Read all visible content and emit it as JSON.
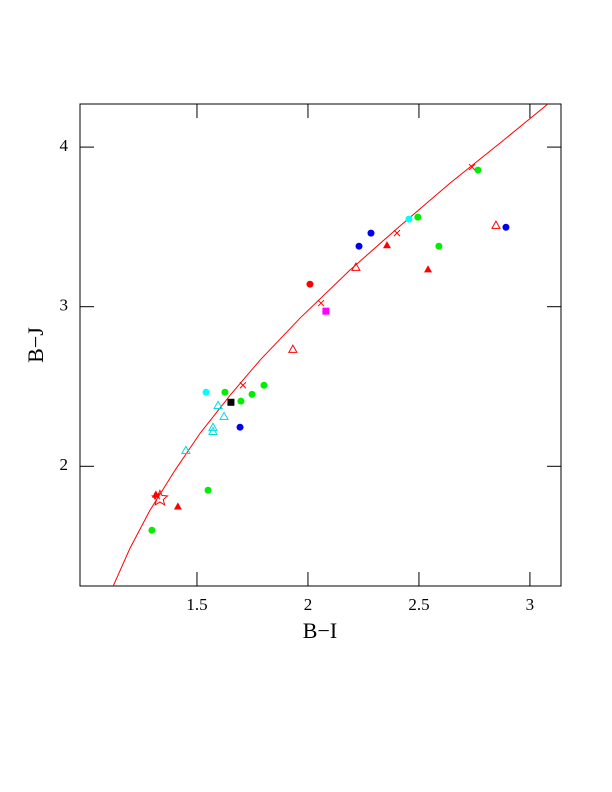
{
  "chart_data": {
    "type": "scatter",
    "x_label": "B−I",
    "y_label": "B−J",
    "xlim": [
      0.973,
      3.14
    ],
    "ylim": [
      1.25,
      4.27
    ],
    "xticks": [
      1.5,
      2,
      2.5,
      3
    ],
    "yticks": [
      2,
      3,
      4
    ],
    "series": [
      {
        "color": "#ff0000",
        "marker": "line",
        "x": [
          1.122,
          1.198,
          1.288,
          1.401,
          1.514,
          1.649,
          1.784,
          1.964,
          2.189,
          2.414,
          2.64,
          2.865,
          3.081
        ],
        "values": [
          1.248,
          1.486,
          1.724,
          1.975,
          2.207,
          2.445,
          2.665,
          2.928,
          3.229,
          3.505,
          3.774,
          4.025,
          4.27
        ]
      },
      {
        "color": "#00ee00",
        "marker": "circle",
        "x": [
          1.297,
          1.55,
          1.626,
          1.698,
          1.748,
          1.802,
          2.495,
          2.59,
          2.766
        ],
        "values": [
          1.599,
          1.85,
          2.464,
          2.408,
          2.451,
          2.508,
          3.561,
          3.379,
          3.856
        ]
      },
      {
        "color": "#0000ee",
        "marker": "circle",
        "x": [
          1.694,
          2.23,
          2.284,
          2.892
        ],
        "values": [
          2.245,
          3.379,
          3.461,
          3.498
        ]
      },
      {
        "color": "#00ffff",
        "marker": "circle",
        "x": [
          1.541,
          2.455
        ],
        "values": [
          2.464,
          3.549
        ]
      },
      {
        "color": "#ff0000",
        "marker": "circle",
        "x": [
          2.009
        ],
        "values": [
          3.141
        ]
      },
      {
        "color": "#ff00ff",
        "marker": "square",
        "x": [
          2.081
        ],
        "values": [
          2.972
        ]
      },
      {
        "color": "#000000",
        "marker": "square",
        "x": [
          1.653
        ],
        "values": [
          2.401
        ]
      },
      {
        "color": "#ff0000",
        "marker": "triangle",
        "x": [
          1.315,
          1.414,
          2.356,
          2.541
        ],
        "values": [
          1.824,
          1.749,
          3.386,
          3.235
        ]
      },
      {
        "color": "#ff0000",
        "marker": "open-triangle",
        "x": [
          1.932,
          2.216,
          2.847
        ],
        "values": [
          2.734,
          3.248,
          3.511
        ]
      },
      {
        "color": "#00dddd",
        "marker": "open-triangle",
        "x": [
          1.45,
          1.572,
          1.572,
          1.595,
          1.622
        ],
        "values": [
          2.1,
          2.219,
          2.245,
          2.382,
          2.313
        ]
      },
      {
        "color": "#ff0000",
        "marker": "cross",
        "x": [
          1.32,
          1.707,
          2.059,
          2.401,
          2.739
        ],
        "values": [
          1.812,
          2.508,
          3.022,
          3.461,
          3.875
        ]
      },
      {
        "color": "#ff0000",
        "marker": "star",
        "x": [
          1.333
        ],
        "values": [
          1.799
        ]
      }
    ]
  }
}
